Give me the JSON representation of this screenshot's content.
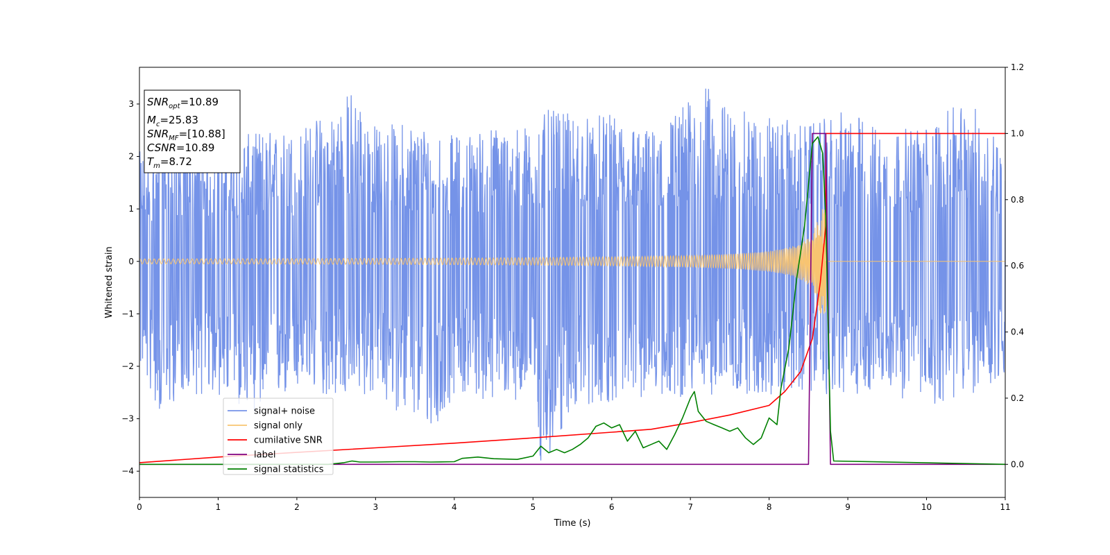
{
  "chart_data": {
    "type": "line",
    "title": "",
    "xlabel": "Time (s)",
    "ylabel": "Whitened strain",
    "xlim": [
      0,
      11
    ],
    "ylim": [
      -4.5,
      3.7
    ],
    "y2lim": [
      -0.1,
      1.2
    ],
    "grid": false,
    "legend_position": "lower-left",
    "x_ticks": [
      "0",
      "1",
      "2",
      "3",
      "4",
      "5",
      "6",
      "7",
      "8",
      "9",
      "10",
      "11"
    ],
    "y_ticks": [
      "−4",
      "−3",
      "−2",
      "−1",
      "0",
      "1",
      "2",
      "3"
    ],
    "y2_ticks": [
      "0.0",
      "0.2",
      "0.4",
      "0.6",
      "0.8",
      "1.0",
      "1.2"
    ],
    "annotation": {
      "snr_opt": {
        "sym": "SNR",
        "sub": "opt",
        "value": "=10.89"
      },
      "mc": {
        "sym": "M",
        "sub": "c",
        "value": "=25.83"
      },
      "snr_mf": {
        "sym": "SNR",
        "sub": "MF",
        "value": "=[10.88]"
      },
      "csnr": {
        "sym": "CSNR",
        "sub": "",
        "value": "=10.89"
      },
      "tm": {
        "sym": "T",
        "sub": "m",
        "value": "=8.72"
      }
    },
    "series": [
      {
        "name": "signal+ noise",
        "color": "#7593e8",
        "axis": "left",
        "description_visual": "whitened noise, roughly in [-2.7, 3.3] with spikes to -4.2 near t=5.1",
        "envelope_high": [
          [
            0,
            2.1
          ],
          [
            0.5,
            2.4
          ],
          [
            1,
            2.2
          ],
          [
            1.5,
            2.5
          ],
          [
            2,
            2.5
          ],
          [
            2.4,
            2.9
          ],
          [
            2.7,
            3.3
          ],
          [
            3,
            2.6
          ],
          [
            3.5,
            2.7
          ],
          [
            4,
            2.4
          ],
          [
            4.5,
            2.6
          ],
          [
            5,
            2.6
          ],
          [
            5.2,
            2.9
          ],
          [
            5.5,
            2.8
          ],
          [
            6,
            2.8
          ],
          [
            6.5,
            2.5
          ],
          [
            6.9,
            3.0
          ],
          [
            7.2,
            3.35
          ],
          [
            7.5,
            2.9
          ],
          [
            8,
            2.8
          ],
          [
            8.5,
            2.6
          ],
          [
            9,
            2.9
          ],
          [
            9.5,
            2.5
          ],
          [
            10,
            2.6
          ],
          [
            10.5,
            3.1
          ],
          [
            11,
            2.4
          ]
        ],
        "envelope_low": [
          [
            0,
            -2.0
          ],
          [
            0.3,
            -3.1
          ],
          [
            0.5,
            -2.5
          ],
          [
            1,
            -2.6
          ],
          [
            1.5,
            -2.9
          ],
          [
            2,
            -2.5
          ],
          [
            2.5,
            -2.6
          ],
          [
            3,
            -2.6
          ],
          [
            3.8,
            -3.35
          ],
          [
            4,
            -2.5
          ],
          [
            4.5,
            -2.7
          ],
          [
            5,
            -2.6
          ],
          [
            5.1,
            -4.2
          ],
          [
            5.5,
            -2.8
          ],
          [
            6,
            -2.7
          ],
          [
            6.5,
            -2.6
          ],
          [
            7,
            -2.6
          ],
          [
            7.5,
            -2.5
          ],
          [
            8,
            -2.6
          ],
          [
            8.5,
            -2.5
          ],
          [
            9,
            -2.6
          ],
          [
            9.5,
            -2.4
          ],
          [
            9.9,
            -2.85
          ],
          [
            10.5,
            -2.6
          ],
          [
            11,
            -2.3
          ]
        ]
      },
      {
        "name": "signal only",
        "color": "#f8c471",
        "axis": "left",
        "chirp_start": 0,
        "chirp_end": 8.72,
        "amplitude_start": 0.02,
        "amplitude_end": 1.0
      },
      {
        "name": "cumilative SNR",
        "color": "#ff0000",
        "axis": "right",
        "points": [
          [
            0,
            0.005
          ],
          [
            1,
            0.022
          ],
          [
            2,
            0.036
          ],
          [
            3,
            0.05
          ],
          [
            4,
            0.064
          ],
          [
            5,
            0.08
          ],
          [
            6,
            0.097
          ],
          [
            6.5,
            0.106
          ],
          [
            7,
            0.126
          ],
          [
            7.5,
            0.149
          ],
          [
            8,
            0.178
          ],
          [
            8.2,
            0.22
          ],
          [
            8.4,
            0.28
          ],
          [
            8.55,
            0.38
          ],
          [
            8.65,
            0.55
          ],
          [
            8.72,
            0.72
          ],
          [
            8.72,
            1.0
          ],
          [
            11,
            1.0
          ]
        ]
      },
      {
        "name": "label",
        "color": "#800080",
        "axis": "right",
        "points": [
          [
            0,
            0
          ],
          [
            8.5,
            0
          ],
          [
            8.55,
            1.0
          ],
          [
            8.72,
            1.0
          ],
          [
            8.78,
            0
          ],
          [
            11,
            0
          ]
        ]
      },
      {
        "name": "signal statistics",
        "color": "#008000",
        "axis": "right",
        "points": [
          [
            0,
            0
          ],
          [
            2.4,
            0
          ],
          [
            2.6,
            0.005
          ],
          [
            2.7,
            0.01
          ],
          [
            2.8,
            0.007
          ],
          [
            3,
            0.007
          ],
          [
            3.3,
            0.008
          ],
          [
            3.5,
            0.008
          ],
          [
            3.7,
            0.007
          ],
          [
            4,
            0.008
          ],
          [
            4.1,
            0.018
          ],
          [
            4.3,
            0.022
          ],
          [
            4.5,
            0.017
          ],
          [
            4.8,
            0.015
          ],
          [
            5,
            0.025
          ],
          [
            5.1,
            0.055
          ],
          [
            5.2,
            0.035
          ],
          [
            5.3,
            0.045
          ],
          [
            5.4,
            0.035
          ],
          [
            5.5,
            0.045
          ],
          [
            5.6,
            0.06
          ],
          [
            5.7,
            0.08
          ],
          [
            5.8,
            0.115
          ],
          [
            5.9,
            0.125
          ],
          [
            6,
            0.11
          ],
          [
            6.1,
            0.12
          ],
          [
            6.2,
            0.07
          ],
          [
            6.3,
            0.1
          ],
          [
            6.4,
            0.05
          ],
          [
            6.5,
            0.06
          ],
          [
            6.6,
            0.07
          ],
          [
            6.7,
            0.045
          ],
          [
            6.8,
            0.09
          ],
          [
            6.9,
            0.14
          ],
          [
            7,
            0.2
          ],
          [
            7.05,
            0.22
          ],
          [
            7.1,
            0.16
          ],
          [
            7.2,
            0.13
          ],
          [
            7.3,
            0.12
          ],
          [
            7.4,
            0.11
          ],
          [
            7.5,
            0.1
          ],
          [
            7.6,
            0.11
          ],
          [
            7.7,
            0.08
          ],
          [
            7.8,
            0.06
          ],
          [
            7.9,
            0.08
          ],
          [
            8,
            0.14
          ],
          [
            8.05,
            0.13
          ],
          [
            8.1,
            0.12
          ],
          [
            8.15,
            0.23
          ],
          [
            8.25,
            0.35
          ],
          [
            8.35,
            0.56
          ],
          [
            8.45,
            0.72
          ],
          [
            8.55,
            0.97
          ],
          [
            8.62,
            0.99
          ],
          [
            8.68,
            0.94
          ],
          [
            8.72,
            0.75
          ],
          [
            8.78,
            0.1
          ],
          [
            8.82,
            0.01
          ],
          [
            11,
            0
          ]
        ]
      }
    ]
  }
}
